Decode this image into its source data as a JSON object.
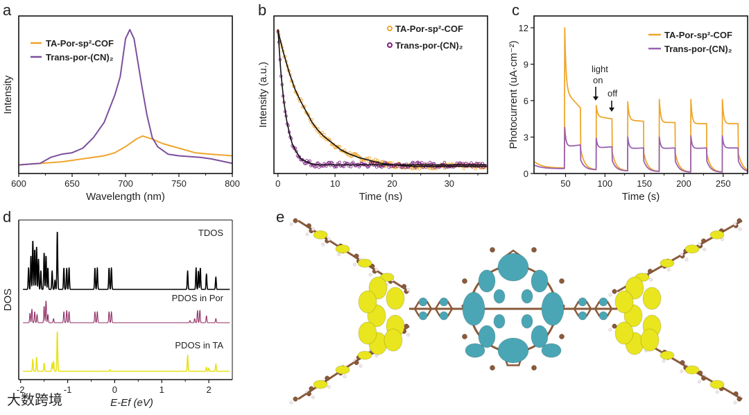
{
  "panel_letters": {
    "a": "a",
    "b": "b",
    "c": "c",
    "d": "d",
    "e": "e"
  },
  "colors": {
    "orange": "#efa52b",
    "purple_a": "#7c4f9e",
    "purple_b": "#7b2180",
    "purple_c": "#9a62b0",
    "tdos": "#000000",
    "pdos_por": "#8e2b63",
    "pdos_ta": "#e8e21a",
    "cyan": "#4aa6b5",
    "yellow": "#e9e51f",
    "carbon": "#8a5a3a"
  },
  "watermark": "大数跨境",
  "chart_data": [
    {
      "id": "a",
      "type": "line",
      "xlabel": "Wavelength (nm)",
      "ylabel": "Intensity",
      "xlim": [
        600,
        800
      ],
      "ylim": [
        0,
        1
      ],
      "xticks": [
        "600",
        "650",
        "700",
        "750",
        "800"
      ],
      "legend": {
        "placement": "top-left",
        "entries": [
          "TA-Por-sp²-COF",
          "Trans-por-(CN)₂"
        ]
      },
      "series": [
        {
          "name": "TA-Por-sp²-COF",
          "x": [
            600,
            620,
            640,
            660,
            680,
            690,
            700,
            710,
            716,
            725,
            735,
            750,
            765,
            780,
            800
          ],
          "y": [
            0.02,
            0.03,
            0.04,
            0.06,
            0.08,
            0.1,
            0.14,
            0.19,
            0.21,
            0.19,
            0.16,
            0.13,
            0.1,
            0.09,
            0.08
          ]
        },
        {
          "name": "Trans-por-(CN)₂",
          "x": [
            600,
            620,
            630,
            640,
            650,
            660,
            670,
            680,
            690,
            695,
            700,
            704,
            708,
            715,
            720,
            725,
            730,
            740,
            750,
            760,
            770,
            780,
            790,
            800
          ],
          "y": [
            0.02,
            0.03,
            0.07,
            0.09,
            0.1,
            0.13,
            0.2,
            0.3,
            0.48,
            0.6,
            0.85,
            0.91,
            0.85,
            0.55,
            0.35,
            0.2,
            0.14,
            0.09,
            0.08,
            0.075,
            0.07,
            0.06,
            0.045,
            0.03
          ]
        }
      ]
    },
    {
      "id": "b",
      "type": "scatter",
      "xlabel": "Time (ns)",
      "ylabel": "Intensity (a.u.)",
      "xlim": [
        -0.7,
        36.7
      ],
      "ylim": [
        0,
        1
      ],
      "xticks": [
        "0",
        "10",
        "20",
        "30"
      ],
      "legend": {
        "placement": "top-right",
        "entries": [
          "TA-Por-sp²-COF",
          "Trans-por-(CN)₂"
        ]
      },
      "series": [
        {
          "name": "TA-Por-sp²-COF",
          "x": [
            0,
            1,
            2,
            3,
            4,
            5,
            6,
            7,
            8,
            9,
            10,
            11,
            12,
            13,
            14,
            15,
            16,
            17,
            18,
            19,
            20,
            21,
            22,
            23,
            24,
            26,
            28,
            30,
            32,
            34,
            36
          ],
          "y": [
            0.92,
            0.77,
            0.64,
            0.53,
            0.45,
            0.38,
            0.31,
            0.26,
            0.22,
            0.19,
            0.16,
            0.13,
            0.11,
            0.095,
            0.08,
            0.07,
            0.06,
            0.05,
            0.04,
            0.035,
            0.03,
            0.028,
            0.025,
            0.022,
            0.02,
            0.02,
            0.02,
            0.02,
            0.02,
            0.02,
            0.02
          ]
        },
        {
          "name": "Trans-por-(CN)₂",
          "x": [
            0,
            0.5,
            1,
            1.5,
            2,
            2.5,
            3,
            4,
            5,
            6,
            7,
            8,
            10,
            12,
            14,
            16,
            18,
            20,
            22,
            24,
            26,
            28,
            30,
            32,
            34,
            36
          ],
          "y": [
            0.93,
            0.65,
            0.46,
            0.33,
            0.24,
            0.17,
            0.13,
            0.07,
            0.05,
            0.035,
            0.03,
            0.03,
            0.03,
            0.03,
            0.03,
            0.03,
            0.03,
            0.03,
            0.03,
            0.03,
            0.03,
            0.03,
            0.03,
            0.03,
            0.03,
            0.03
          ]
        }
      ]
    },
    {
      "id": "c",
      "type": "line",
      "xlabel": "Time (s)",
      "ylabel": "Photocurrent (uA·cm⁻²)",
      "xlim": [
        10,
        281
      ],
      "ylim": [
        0,
        13
      ],
      "xticks": [
        "50",
        "100",
        "150",
        "200",
        "250"
      ],
      "yticks": [
        "0",
        "3",
        "6",
        "9",
        "12"
      ],
      "legend": {
        "placement": "top-right",
        "entries": [
          "TA-Por-sp²-COF",
          "Trans-por-(CN)₂"
        ]
      },
      "annotations": {
        "light_on": "light\non",
        "light_on_line1": "light",
        "light_on_line2": "on",
        "off": "off"
      },
      "series": [
        {
          "name": "TA-Por-sp²-COF",
          "start": 1.0,
          "cycles": [
            {
              "on": 49,
              "off": 69,
              "peak": 12.0,
              "steady_start": 6.8,
              "steady_end": 5.4,
              "dark_min": 0.45
            },
            {
              "on": 89,
              "off": 109,
              "peak": 5.6,
              "steady_start": 4.7,
              "steady_end": 4.5,
              "dark_min": 0.3
            },
            {
              "on": 129,
              "off": 149,
              "peak": 5.9,
              "steady_start": 4.4,
              "steady_end": 4.3,
              "dark_min": 0.2
            },
            {
              "on": 169,
              "off": 189,
              "peak": 6.1,
              "steady_start": 4.2,
              "steady_end": 4.2,
              "dark_min": 0.15
            },
            {
              "on": 209,
              "off": 229,
              "peak": 6.1,
              "steady_start": 4.1,
              "steady_end": 4.1,
              "dark_min": 0.1
            },
            {
              "on": 249,
              "off": 269,
              "peak": 6.1,
              "steady_start": 4.1,
              "steady_end": 4.1,
              "dark_min": 0.1
            }
          ]
        },
        {
          "name": "Trans-por-(CN)₂",
          "start": 0.7,
          "cycles": [
            {
              "on": 49,
              "off": 69,
              "peak": 3.8,
              "steady_start": 2.2,
              "steady_end": 2.35,
              "dark_min": 0.4
            },
            {
              "on": 89,
              "off": 109,
              "peak": 2.9,
              "steady_start": 2.1,
              "steady_end": 2.2,
              "dark_min": 0.3
            },
            {
              "on": 129,
              "off": 149,
              "peak": 3.0,
              "steady_start": 2.05,
              "steady_end": 2.1,
              "dark_min": 0.2
            },
            {
              "on": 169,
              "off": 189,
              "peak": 3.0,
              "steady_start": 2.05,
              "steady_end": 2.1,
              "dark_min": 0.15
            },
            {
              "on": 209,
              "off": 229,
              "peak": 3.1,
              "steady_start": 2.05,
              "steady_end": 2.1,
              "dark_min": 0.1
            },
            {
              "on": 249,
              "off": 269,
              "peak": 3.1,
              "steady_start": 2.1,
              "steady_end": 2.1,
              "dark_min": 0.1
            }
          ]
        }
      ]
    },
    {
      "id": "d",
      "type": "line",
      "xlabel": "E-Ef (eV)",
      "ylabel": "DOS",
      "xlim": [
        -2.04,
        2.5
      ],
      "xticks": [
        "-2",
        "-1",
        "0",
        "1",
        "2"
      ],
      "series": [
        {
          "name": "TDOS",
          "peaks": [
            [
              -1.83,
              0.35
            ],
            [
              -1.78,
              0.55
            ],
            [
              -1.74,
              0.8
            ],
            [
              -1.7,
              0.65
            ],
            [
              -1.66,
              0.7
            ],
            [
              -1.62,
              0.5
            ],
            [
              -1.57,
              0.3
            ],
            [
              -1.5,
              0.6
            ],
            [
              -1.46,
              0.55
            ],
            [
              -1.42,
              0.35
            ],
            [
              -1.33,
              0.3
            ],
            [
              -1.27,
              0.15
            ],
            [
              -1.22,
              0.95
            ],
            [
              -1.08,
              0.35
            ],
            [
              -1.02,
              0.35
            ],
            [
              -0.97,
              0.35
            ],
            [
              -0.42,
              0.35
            ],
            [
              -0.37,
              0.35
            ],
            [
              -0.12,
              0.35
            ],
            [
              -0.07,
              0.35
            ],
            [
              1.55,
              0.3
            ],
            [
              1.73,
              0.35
            ],
            [
              1.78,
              0.3
            ],
            [
              1.82,
              0.35
            ],
            [
              1.95,
              0.25
            ],
            [
              2.15,
              0.2
            ]
          ]
        },
        {
          "name": "PDOS in Por",
          "peaks": [
            [
              -1.8,
              0.35
            ],
            [
              -1.76,
              0.5
            ],
            [
              -1.7,
              0.4
            ],
            [
              -1.65,
              0.3
            ],
            [
              -1.5,
              0.6
            ],
            [
              -1.46,
              0.8
            ],
            [
              -1.42,
              0.3
            ],
            [
              -1.3,
              0.15
            ],
            [
              -1.08,
              0.4
            ],
            [
              -1.02,
              0.45
            ],
            [
              -0.97,
              0.4
            ],
            [
              -0.42,
              0.4
            ],
            [
              -0.37,
              0.4
            ],
            [
              -0.12,
              0.4
            ],
            [
              -0.07,
              0.4
            ],
            [
              1.6,
              0.08
            ],
            [
              1.7,
              0.15
            ],
            [
              1.76,
              0.45
            ],
            [
              1.81,
              0.45
            ],
            [
              1.95,
              0.25
            ],
            [
              2.15,
              0.15
            ]
          ]
        },
        {
          "name": "PDOS in TA",
          "peaks": [
            [
              -1.74,
              0.3
            ],
            [
              -1.66,
              0.35
            ],
            [
              -1.5,
              0.2
            ],
            [
              -1.33,
              0.2
            ],
            [
              -1.3,
              0.25
            ],
            [
              -1.22,
              1.0
            ],
            [
              -0.1,
              0.04
            ],
            [
              1.55,
              0.4
            ],
            [
              1.95,
              0.1
            ],
            [
              2.0,
              0.08
            ],
            [
              2.15,
              0.18
            ]
          ]
        }
      ]
    }
  ]
}
